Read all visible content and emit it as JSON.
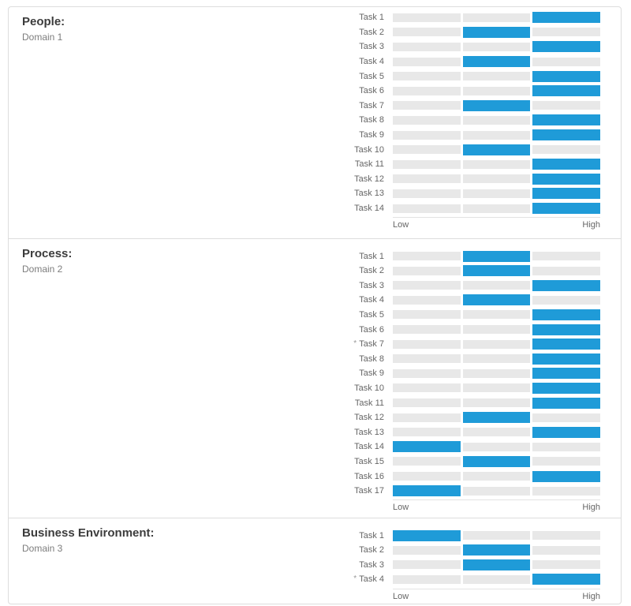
{
  "colors": {
    "bar_active": "#1f9bd8",
    "bar_track": "#e8e8e8",
    "panel_border": "#dddddd"
  },
  "scale_labels": {
    "low": "Low",
    "high": "High"
  },
  "chart_data": [
    {
      "type": "bar",
      "section_title": "People:",
      "section_subtitle": "Domain 1",
      "categories": [
        "Task 1",
        "Task 2",
        "Task 3",
        "Task 4",
        "Task 5",
        "Task 6",
        "Task 7",
        "Task 8",
        "Task 9",
        "Task 10",
        "Task 11",
        "Task 12",
        "Task 13",
        "Task 14"
      ],
      "levels": [
        "high",
        "medium",
        "high",
        "medium",
        "high",
        "high",
        "medium",
        "high",
        "high",
        "medium",
        "high",
        "high",
        "high",
        "high"
      ],
      "values_1to3": [
        3,
        2,
        3,
        2,
        3,
        3,
        2,
        3,
        3,
        2,
        3,
        3,
        3,
        3
      ],
      "level_scale": {
        "low": 1,
        "medium": 2,
        "high": 3
      },
      "starred_categories": [],
      "x_axis": {
        "left_label": "Low",
        "right_label": "High"
      }
    },
    {
      "type": "bar",
      "section_title": "Process:",
      "section_subtitle": "Domain 2",
      "categories": [
        "Task 1",
        "Task 2",
        "Task 3",
        "Task 4",
        "Task 5",
        "Task 6",
        "Task 7",
        "Task 8",
        "Task 9",
        "Task 10",
        "Task 11",
        "Task 12",
        "Task 13",
        "Task 14",
        "Task 15",
        "Task 16",
        "Task 17"
      ],
      "levels": [
        "medium",
        "medium",
        "high",
        "medium",
        "high",
        "high",
        "high",
        "high",
        "high",
        "high",
        "high",
        "medium",
        "high",
        "low",
        "medium",
        "high",
        "low"
      ],
      "values_1to3": [
        2,
        2,
        3,
        2,
        3,
        3,
        3,
        3,
        3,
        3,
        3,
        2,
        3,
        1,
        2,
        3,
        1
      ],
      "level_scale": {
        "low": 1,
        "medium": 2,
        "high": 3
      },
      "starred_categories": [
        "Task 7"
      ],
      "x_axis": {
        "left_label": "Low",
        "right_label": "High"
      }
    },
    {
      "type": "bar",
      "section_title": "Business Environment:",
      "section_subtitle": "Domain 3",
      "categories": [
        "Task 1",
        "Task 2",
        "Task 3",
        "Task 4"
      ],
      "levels": [
        "low",
        "medium",
        "medium",
        "high"
      ],
      "values_1to3": [
        1,
        2,
        2,
        3
      ],
      "level_scale": {
        "low": 1,
        "medium": 2,
        "high": 3
      },
      "starred_categories": [
        "Task 4"
      ],
      "x_axis": {
        "left_label": "Low",
        "right_label": "High"
      }
    }
  ]
}
